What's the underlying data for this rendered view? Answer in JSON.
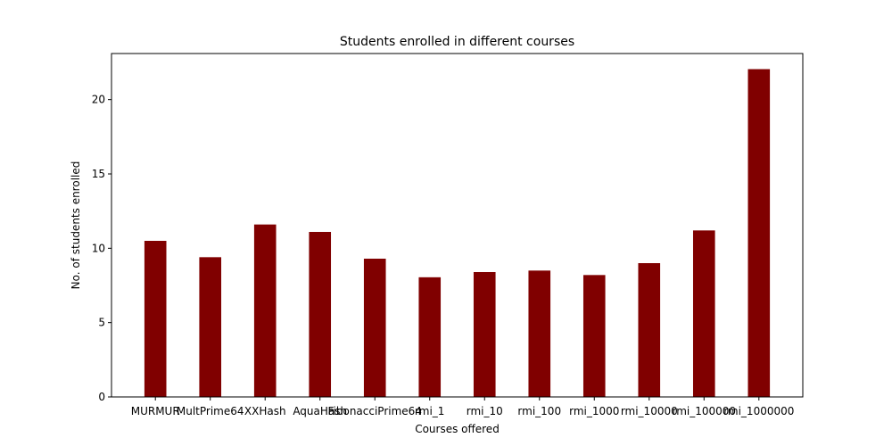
{
  "chart_data": {
    "type": "bar",
    "title": "Students enrolled in different courses",
    "xlabel": "Courses offered",
    "ylabel": "No. of students enrolled",
    "categories": [
      "MURMUR",
      "MultPrime64",
      "XXHash",
      "AquaHash",
      "FibonacciPrime64",
      "rmi_1",
      "rmi_10",
      "rmi_100",
      "rmi_1000",
      "rmi_10000",
      "rmi_100000",
      "rmi_1000000"
    ],
    "values": [
      10.5,
      9.4,
      11.6,
      11.1,
      9.3,
      8.05,
      8.4,
      8.5,
      8.2,
      9.0,
      11.2,
      22.05
    ],
    "ylim": [
      0,
      23.1
    ],
    "yticks": [
      0,
      5,
      10,
      15,
      20
    ],
    "bar_color": "#800000",
    "grid": false,
    "legend": "none"
  }
}
